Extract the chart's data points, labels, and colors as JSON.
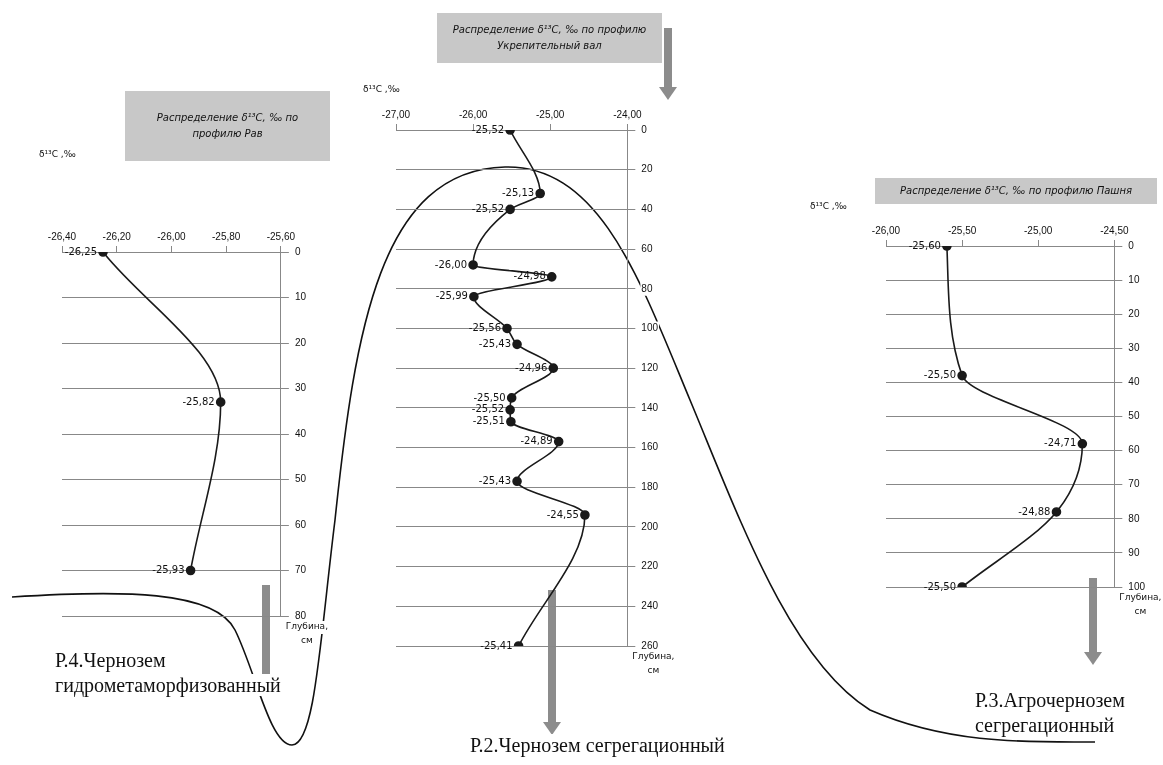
{
  "chart_data": [
    {
      "type": "line",
      "orientation": "horizontal",
      "title": "Распределение δ¹³C, ‰ по профилю Рав",
      "xlabel": "δ¹³C ,‰",
      "ylabel": "Глубина, см",
      "annotations": [
        "Р.4.Чернозем гидрометаморфизованный"
      ],
      "grid": "y",
      "marker": "circle",
      "line_style": "solid",
      "xlim": [
        -26.4,
        -25.6
      ],
      "xticks": [
        {
          "value": -26.4,
          "label": "-26,40"
        },
        {
          "value": -26.2,
          "label": "-26,20"
        },
        {
          "value": -26.0,
          "label": "-26,00"
        },
        {
          "value": -25.8,
          "label": "-25,80"
        },
        {
          "value": -25.6,
          "label": "-25,60"
        }
      ],
      "ylim": [
        80,
        0
      ],
      "yticks": [
        0,
        10,
        20,
        30,
        40,
        50,
        60,
        70,
        80
      ],
      "series": [
        {
          "color": "#1a1a1a",
          "x": [
            0,
            33,
            70
          ],
          "values": [
            -26.25,
            -25.82,
            -25.93
          ],
          "value_labels": [
            "-26,25",
            "-25,82",
            "-25,93"
          ]
        }
      ]
    },
    {
      "type": "line",
      "orientation": "horizontal",
      "title": "Распределение δ¹³C, ‰ по профилю Укрепительный вал",
      "xlabel": "δ¹³C ,‰",
      "ylabel": "Глубина, см",
      "annotations": [
        "Р.2.Чернозем сегрегационный"
      ],
      "grid": "y",
      "marker": "circle",
      "line_style": "solid",
      "xlim": [
        -27,
        -24
      ],
      "xticks": [
        {
          "value": -27,
          "label": "-27,00"
        },
        {
          "value": -26,
          "label": "-26,00"
        },
        {
          "value": -25,
          "label": "-25,00"
        },
        {
          "value": -24,
          "label": "-24,00"
        }
      ],
      "ylim": [
        260,
        0
      ],
      "yticks": [
        0,
        20,
        40,
        60,
        80,
        100,
        120,
        140,
        160,
        180,
        200,
        220,
        240,
        260
      ],
      "series": [
        {
          "color": "#1a1a1a",
          "x": [
            0,
            32,
            40,
            68,
            74,
            84,
            100,
            108,
            120,
            135,
            141,
            147,
            157,
            177,
            194,
            260
          ],
          "values": [
            -25.52,
            -25.13,
            -25.52,
            -26.0,
            -24.98,
            -25.99,
            -25.56,
            -25.43,
            -24.96,
            -25.5,
            -25.52,
            -25.51,
            -24.89,
            -25.43,
            -24.55,
            -25.41
          ],
          "value_labels": [
            "-25,52",
            "-25,13",
            "-25,52",
            "-26,00",
            "-24,98",
            "-25,99",
            "-25,56",
            "-25,43",
            "-24,96",
            "-25,50",
            "-25,52",
            "-25,51",
            "-24,89",
            "-25,43",
            "-24,55",
            "-25,41"
          ]
        }
      ]
    },
    {
      "type": "line",
      "orientation": "horizontal",
      "title": "Распределение δ¹³C, ‰ по профилю Пашня",
      "xlabel": "δ¹³C ,‰",
      "ylabel": "Глубина, см",
      "annotations": [
        "Р.3.Агрочернозем сегрегационный"
      ],
      "grid": "y",
      "marker": "circle",
      "line_style": "solid",
      "xlim": [
        -26,
        -24.5
      ],
      "xticks": [
        {
          "value": -26,
          "label": "-26,00"
        },
        {
          "value": -25.5,
          "label": "-25,50"
        },
        {
          "value": -25,
          "label": "-25,00"
        },
        {
          "value": -24.5,
          "label": "-24,50"
        }
      ],
      "ylim": [
        100,
        0
      ],
      "yticks": [
        0,
        10,
        20,
        30,
        40,
        50,
        60,
        70,
        80,
        90,
        100
      ],
      "series": [
        {
          "color": "#1a1a1a",
          "x": [
            0,
            38,
            58,
            78,
            100
          ],
          "values": [
            -25.6,
            -25.5,
            -24.71,
            -24.88,
            -25.5
          ],
          "value_labels": [
            "-25,60",
            "-25,50",
            "-24,71",
            "-24,88",
            "-25,50"
          ]
        }
      ]
    }
  ]
}
